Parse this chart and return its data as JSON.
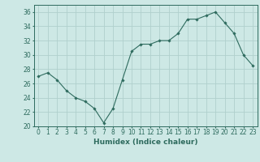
{
  "x": [
    0,
    1,
    2,
    3,
    4,
    5,
    6,
    7,
    8,
    9,
    10,
    11,
    12,
    13,
    14,
    15,
    16,
    17,
    18,
    19,
    20,
    21,
    22,
    23
  ],
  "y": [
    27,
    27.5,
    26.5,
    25,
    24,
    23.5,
    22.5,
    20.5,
    22.5,
    26.5,
    30.5,
    31.5,
    31.5,
    32,
    32,
    33,
    35,
    35,
    35.5,
    36,
    34.5,
    33,
    30,
    28.5
  ],
  "line_color": "#2e6b5e",
  "marker": "D",
  "marker_size": 1.8,
  "bg_color": "#cde8e5",
  "grid_color": "#b0d0cc",
  "xlabel": "Humidex (Indice chaleur)",
  "ylim": [
    20,
    37
  ],
  "xlim": [
    -0.5,
    23.5
  ],
  "yticks": [
    20,
    22,
    24,
    26,
    28,
    30,
    32,
    34,
    36
  ],
  "xticks": [
    0,
    1,
    2,
    3,
    4,
    5,
    6,
    7,
    8,
    9,
    10,
    11,
    12,
    13,
    14,
    15,
    16,
    17,
    18,
    19,
    20,
    21,
    22,
    23
  ],
  "label_fontsize": 6.5,
  "tick_fontsize": 5.5
}
